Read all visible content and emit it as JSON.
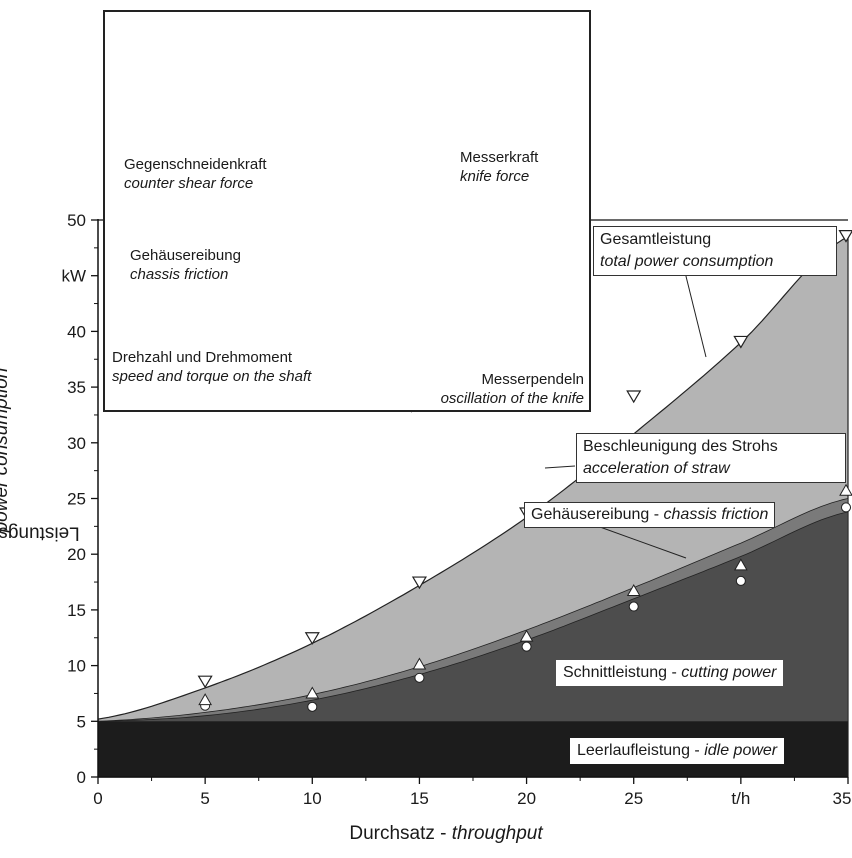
{
  "chart_data": {
    "type": "area",
    "xlabel": {
      "main": "Durchsatz - ",
      "italic": "throughput"
    },
    "ylabel": {
      "main": "Leistungsaufnahme - ",
      "italic": "power consumption"
    },
    "x_unit": "t/h",
    "y_unit": "kW",
    "xlim": [
      0,
      35
    ],
    "ylim": [
      0,
      50
    ],
    "x_ticks": [
      "0",
      "5",
      "10",
      "15",
      "20",
      "25",
      "t/h",
      "35"
    ],
    "y_ticks": [
      "0",
      "5",
      "10",
      "15",
      "20",
      "25",
      "30",
      "35",
      "40",
      "kW",
      "50"
    ],
    "x": [
      0,
      5,
      10,
      15,
      20,
      25,
      30,
      35
    ],
    "series": [
      {
        "name": "Leerlaufleistung - idle power",
        "main": "Leerlaufleistung - ",
        "italic": "idle power",
        "curve": [
          5,
          5,
          5,
          5,
          5,
          5,
          5,
          5
        ],
        "color": "#1c1c1c"
      },
      {
        "name": "Schnittleistung - cutting power",
        "main": "Schnittleistung - ",
        "italic": "cutting power",
        "curve": [
          5.0,
          5.5,
          6.9,
          9.2,
          12.3,
          16.0,
          19.8,
          23.8
        ],
        "points": [
          6.4,
          6.3,
          8.9,
          11.7,
          15.3,
          17.6,
          24.2
        ],
        "marker": "circle",
        "color": "#4d4d4d"
      },
      {
        "name": "Gehäusereibung - chassis friction",
        "main": "Gehäusereibung - ",
        "italic": "chassis friction",
        "curve": [
          5.0,
          5.8,
          7.4,
          9.9,
          13.2,
          17.0,
          21.0,
          25.0
        ],
        "points": [
          6.9,
          7.5,
          10.1,
          12.6,
          16.7,
          19.0,
          25.7
        ],
        "marker": "triangle-up",
        "color": "#7a7a7a"
      },
      {
        "name": "Beschleunigung des Strohs - acceleration of straw",
        "main": "Beschleunigung des Strohs",
        "italic": "acceleration of straw",
        "color": "#b4b4b4"
      },
      {
        "name": "Gesamtleistung - total power consumption",
        "main": "Gesamtleistung",
        "italic": "total power consumption",
        "curve": [
          5.2,
          8.0,
          12.0,
          17.2,
          23.3,
          30.8,
          39.0,
          48.5
        ],
        "points": [
          8.6,
          12.5,
          17.5,
          23.7,
          34.2,
          39.1,
          48.6
        ],
        "marker": "triangle-down"
      }
    ],
    "point_x": [
      5,
      10,
      15,
      20,
      25,
      30,
      35
    ],
    "grid": false,
    "inset": {
      "labels": [
        {
          "main": "Gegenschneidenkraft",
          "italic": "counter shear force"
        },
        {
          "main": "Messerkraft",
          "italic": "knife force"
        },
        {
          "main": "Gehäusereibung",
          "italic": "chassis friction"
        },
        {
          "main": "Drehzahl und Drehmoment",
          "italic": "speed and torque on the shaft"
        },
        {
          "main": "Messerpendeln",
          "italic": "oscillation of the knife"
        }
      ]
    }
  }
}
